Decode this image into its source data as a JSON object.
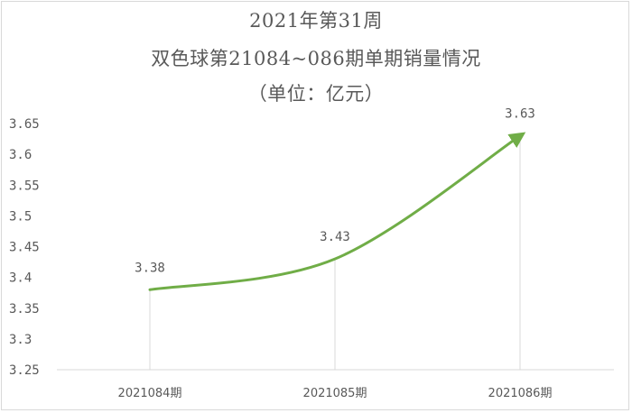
{
  "title_lines": [
    "2021年第31周",
    "双色球第21084~086期单期销量情况",
    "（单位：亿元）"
  ],
  "colors": {
    "line": "#70ad47",
    "drop_line": "#d9d9d9",
    "axis": "#d9d9d9",
    "text": "#595959"
  },
  "chart_data": {
    "type": "line",
    "smooth": true,
    "arrow_end": true,
    "drop_lines": true,
    "grid": false,
    "categories": [
      "2021084期",
      "2021085期",
      "2021086期"
    ],
    "values": [
      3.38,
      3.43,
      3.63
    ],
    "data_labels": [
      "3.38",
      "3.43",
      "3.63"
    ],
    "yticks": [
      "3.25",
      "3.3",
      "3.35",
      "3.4",
      "3.45",
      "3.5",
      "3.55",
      "3.6",
      "3.65"
    ],
    "ylim": [
      3.25,
      3.65
    ]
  }
}
